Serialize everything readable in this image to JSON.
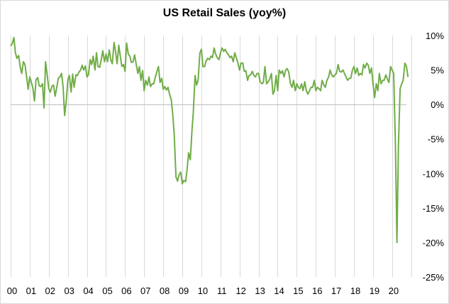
{
  "chart_data": {
    "type": "line",
    "title": "US Retail Sales (yoy%)",
    "xlabel": "",
    "ylabel": "",
    "x_range": [
      2000.0,
      2020.75
    ],
    "ylim": [
      -25,
      10
    ],
    "y_ticks": [
      10,
      5,
      0,
      -5,
      -10,
      -15,
      -20,
      -25
    ],
    "y_tick_labels": [
      "10%",
      "5%",
      "0%",
      "-5%",
      "-10%",
      "-15%",
      "-20%",
      "-25%"
    ],
    "x_tick_labels": [
      "00",
      "01",
      "02",
      "03",
      "04",
      "05",
      "06",
      "07",
      "08",
      "09",
      "10",
      "11",
      "12",
      "13",
      "14",
      "15",
      "16",
      "17",
      "18",
      "19",
      "20"
    ],
    "axis_position": "right",
    "grid": "vertical-year-lines",
    "zero_line": true,
    "line_color": "#70ad47",
    "series": [
      {
        "name": "",
        "points": [
          [
            2000.0,
            8.5
          ],
          [
            2000.08,
            8.8
          ],
          [
            2000.17,
            9.7
          ],
          [
            2000.25,
            7.5
          ],
          [
            2000.33,
            6.7
          ],
          [
            2000.42,
            7.1
          ],
          [
            2000.5,
            5.5
          ],
          [
            2000.58,
            4.5
          ],
          [
            2000.67,
            6.2
          ],
          [
            2000.75,
            5.8
          ],
          [
            2000.83,
            4.2
          ],
          [
            2000.92,
            2.2
          ],
          [
            2001.0,
            4.0
          ],
          [
            2001.08,
            3.3
          ],
          [
            2001.17,
            2.3
          ],
          [
            2001.25,
            0.5
          ],
          [
            2001.33,
            3.6
          ],
          [
            2001.42,
            3.9
          ],
          [
            2001.5,
            2.7
          ],
          [
            2001.58,
            2.6
          ],
          [
            2001.67,
            3.0
          ],
          [
            2001.75,
            -0.5
          ],
          [
            2001.83,
            6.2
          ],
          [
            2001.92,
            4.2
          ],
          [
            2002.0,
            2.3
          ],
          [
            2002.08,
            1.8
          ],
          [
            2002.17,
            2.7
          ],
          [
            2002.25,
            2.8
          ],
          [
            2002.33,
            1.2
          ],
          [
            2002.42,
            2.5
          ],
          [
            2002.5,
            3.8
          ],
          [
            2002.58,
            4.0
          ],
          [
            2002.67,
            4.5
          ],
          [
            2002.75,
            2.5
          ],
          [
            2002.83,
            -1.6
          ],
          [
            2002.92,
            0.6
          ],
          [
            2003.0,
            3.6
          ],
          [
            2003.08,
            4.2
          ],
          [
            2003.17,
            1.8
          ],
          [
            2003.25,
            4.4
          ],
          [
            2003.33,
            2.5
          ],
          [
            2003.42,
            4.3
          ],
          [
            2003.5,
            4.2
          ],
          [
            2003.58,
            4.7
          ],
          [
            2003.67,
            5.0
          ],
          [
            2003.75,
            5.7
          ],
          [
            2003.83,
            5.0
          ],
          [
            2003.92,
            5.6
          ],
          [
            2004.0,
            4.0
          ],
          [
            2004.08,
            4.3
          ],
          [
            2004.17,
            6.5
          ],
          [
            2004.25,
            5.8
          ],
          [
            2004.33,
            7.0
          ],
          [
            2004.42,
            5.0
          ],
          [
            2004.5,
            7.5
          ],
          [
            2004.58,
            5.5
          ],
          [
            2004.67,
            5.4
          ],
          [
            2004.75,
            6.5
          ],
          [
            2004.83,
            7.8
          ],
          [
            2004.92,
            6.2
          ],
          [
            2005.0,
            7.3
          ],
          [
            2005.08,
            6.2
          ],
          [
            2005.17,
            7.9
          ],
          [
            2005.25,
            6.5
          ],
          [
            2005.33,
            5.9
          ],
          [
            2005.42,
            9.0
          ],
          [
            2005.5,
            7.7
          ],
          [
            2005.58,
            5.9
          ],
          [
            2005.67,
            8.6
          ],
          [
            2005.75,
            7.0
          ],
          [
            2005.83,
            5.5
          ],
          [
            2005.92,
            5.8
          ],
          [
            2006.0,
            4.8
          ],
          [
            2006.08,
            8.9
          ],
          [
            2006.17,
            7.3
          ],
          [
            2006.25,
            7.0
          ],
          [
            2006.33,
            6.1
          ],
          [
            2006.42,
            6.2
          ],
          [
            2006.5,
            7.2
          ],
          [
            2006.58,
            5.9
          ],
          [
            2006.67,
            4.5
          ],
          [
            2006.75,
            5.5
          ],
          [
            2006.83,
            3.5
          ],
          [
            2006.92,
            4.9
          ],
          [
            2007.0,
            2.0
          ],
          [
            2007.08,
            3.5
          ],
          [
            2007.17,
            2.8
          ],
          [
            2007.25,
            4.0
          ],
          [
            2007.33,
            2.6
          ],
          [
            2007.42,
            3.0
          ],
          [
            2007.5,
            3.0
          ],
          [
            2007.58,
            3.9
          ],
          [
            2007.67,
            4.8
          ],
          [
            2007.75,
            5.5
          ],
          [
            2007.83,
            3.2
          ],
          [
            2007.92,
            3.8
          ],
          [
            2008.0,
            2.2
          ],
          [
            2008.08,
            2.6
          ],
          [
            2008.17,
            2.1
          ],
          [
            2008.25,
            2.5
          ],
          [
            2008.33,
            1.5
          ],
          [
            2008.42,
            0.7
          ],
          [
            2008.5,
            -1.5
          ],
          [
            2008.58,
            -4.5
          ],
          [
            2008.67,
            -10.5
          ],
          [
            2008.75,
            -11.1
          ],
          [
            2008.83,
            -10.2
          ],
          [
            2008.92,
            -9.8
          ],
          [
            2009.0,
            -11.5
          ],
          [
            2009.08,
            -11.0
          ],
          [
            2009.17,
            -11.2
          ],
          [
            2009.25,
            -9.5
          ],
          [
            2009.33,
            -7.0
          ],
          [
            2009.42,
            -8.0
          ],
          [
            2009.5,
            -4.0
          ],
          [
            2009.58,
            -1.0
          ],
          [
            2009.67,
            4.2
          ],
          [
            2009.75,
            2.8
          ],
          [
            2009.83,
            3.5
          ],
          [
            2009.92,
            7.5
          ],
          [
            2010.0,
            8.0
          ],
          [
            2010.08,
            5.5
          ],
          [
            2010.17,
            5.5
          ],
          [
            2010.25,
            6.3
          ],
          [
            2010.33,
            6.7
          ],
          [
            2010.42,
            6.5
          ],
          [
            2010.5,
            7.0
          ],
          [
            2010.58,
            6.8
          ],
          [
            2010.67,
            8.2
          ],
          [
            2010.75,
            7.3
          ],
          [
            2010.83,
            6.8
          ],
          [
            2010.92,
            6.5
          ],
          [
            2011.0,
            7.5
          ],
          [
            2011.08,
            8.2
          ],
          [
            2011.17,
            7.7
          ],
          [
            2011.25,
            8.0
          ],
          [
            2011.33,
            7.5
          ],
          [
            2011.42,
            7.2
          ],
          [
            2011.5,
            6.8
          ],
          [
            2011.58,
            7.0
          ],
          [
            2011.67,
            6.2
          ],
          [
            2011.75,
            7.5
          ],
          [
            2011.83,
            6.8
          ],
          [
            2011.92,
            6.0
          ],
          [
            2012.0,
            5.0
          ],
          [
            2012.08,
            6.0
          ],
          [
            2012.17,
            6.0
          ],
          [
            2012.25,
            4.8
          ],
          [
            2012.33,
            4.9
          ],
          [
            2012.42,
            3.5
          ],
          [
            2012.5,
            4.2
          ],
          [
            2012.58,
            4.3
          ],
          [
            2012.67,
            4.8
          ],
          [
            2012.75,
            4.2
          ],
          [
            2012.83,
            4.0
          ],
          [
            2012.92,
            4.5
          ],
          [
            2013.0,
            4.5
          ],
          [
            2013.08,
            3.3
          ],
          [
            2013.17,
            3.0
          ],
          [
            2013.25,
            3.2
          ],
          [
            2013.33,
            5.5
          ],
          [
            2013.42,
            3.0
          ],
          [
            2013.5,
            3.3
          ],
          [
            2013.58,
            3.7
          ],
          [
            2013.67,
            4.5
          ],
          [
            2013.75,
            1.5
          ],
          [
            2013.83,
            2.0
          ],
          [
            2013.92,
            4.2
          ],
          [
            2014.0,
            2.0
          ],
          [
            2014.08,
            5.0
          ],
          [
            2014.17,
            4.5
          ],
          [
            2014.25,
            4.9
          ],
          [
            2014.33,
            4.0
          ],
          [
            2014.42,
            5.0
          ],
          [
            2014.5,
            5.2
          ],
          [
            2014.58,
            4.7
          ],
          [
            2014.67,
            3.0
          ],
          [
            2014.75,
            2.5
          ],
          [
            2014.83,
            3.5
          ],
          [
            2014.92,
            2.0
          ],
          [
            2015.0,
            3.0
          ],
          [
            2015.08,
            2.5
          ],
          [
            2015.17,
            2.3
          ],
          [
            2015.25,
            3.0
          ],
          [
            2015.33,
            2.0
          ],
          [
            2015.42,
            3.3
          ],
          [
            2015.5,
            2.0
          ],
          [
            2015.58,
            1.5
          ],
          [
            2015.67,
            2.0
          ],
          [
            2015.75,
            2.5
          ],
          [
            2015.83,
            2.5
          ],
          [
            2015.92,
            3.5
          ],
          [
            2016.0,
            2.0
          ],
          [
            2016.08,
            2.5
          ],
          [
            2016.17,
            2.3
          ],
          [
            2016.25,
            2.0
          ],
          [
            2016.33,
            3.5
          ],
          [
            2016.42,
            2.8
          ],
          [
            2016.5,
            2.5
          ],
          [
            2016.58,
            3.5
          ],
          [
            2016.67,
            4.0
          ],
          [
            2016.75,
            5.0
          ],
          [
            2016.83,
            4.3
          ],
          [
            2016.92,
            4.0
          ],
          [
            2017.0,
            4.3
          ],
          [
            2017.08,
            4.5
          ],
          [
            2017.17,
            5.8
          ],
          [
            2017.25,
            4.8
          ],
          [
            2017.33,
            4.7
          ],
          [
            2017.42,
            5.0
          ],
          [
            2017.5,
            4.5
          ],
          [
            2017.58,
            4.0
          ],
          [
            2017.67,
            3.5
          ],
          [
            2017.75,
            3.8
          ],
          [
            2017.83,
            3.8
          ],
          [
            2017.92,
            5.0
          ],
          [
            2018.0,
            5.5
          ],
          [
            2018.08,
            4.5
          ],
          [
            2018.17,
            5.3
          ],
          [
            2018.25,
            4.2
          ],
          [
            2018.33,
            4.5
          ],
          [
            2018.42,
            4.3
          ],
          [
            2018.5,
            5.8
          ],
          [
            2018.58,
            5.3
          ],
          [
            2018.67,
            6.0
          ],
          [
            2018.75,
            5.7
          ],
          [
            2018.83,
            4.5
          ],
          [
            2018.92,
            5.3
          ],
          [
            2019.0,
            3.0
          ],
          [
            2019.08,
            1.0
          ],
          [
            2019.17,
            3.0
          ],
          [
            2019.25,
            2.0
          ],
          [
            2019.33,
            4.5
          ],
          [
            2019.42,
            3.0
          ],
          [
            2019.5,
            3.5
          ],
          [
            2019.58,
            3.5
          ],
          [
            2019.67,
            4.3
          ],
          [
            2019.75,
            3.7
          ],
          [
            2019.83,
            3.2
          ],
          [
            2019.92,
            5.5
          ],
          [
            2020.0,
            5.0
          ],
          [
            2020.08,
            4.5
          ],
          [
            2020.17,
            -5.5
          ],
          [
            2020.25,
            -20.0
          ],
          [
            2020.33,
            -6.0
          ],
          [
            2020.42,
            2.3
          ],
          [
            2020.5,
            3.0
          ],
          [
            2020.58,
            3.5
          ],
          [
            2020.67,
            6.0
          ],
          [
            2020.75,
            5.5
          ],
          [
            2020.83,
            4.0
          ]
        ]
      }
    ]
  }
}
